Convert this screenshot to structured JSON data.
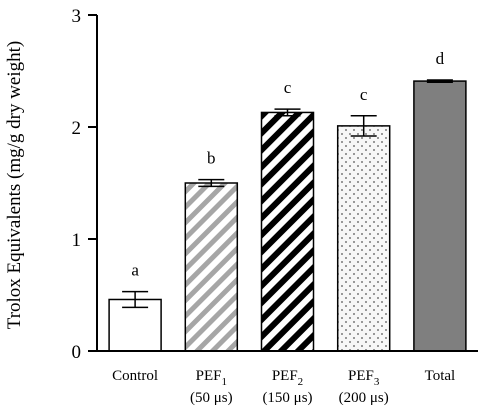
{
  "chart_data": {
    "type": "bar",
    "ylabel": "Trolox Equivalents (mg/g dry weight)",
    "xlabel": "",
    "ylim": [
      0,
      3
    ],
    "yticks": [
      0,
      1,
      2,
      3
    ],
    "categories": [
      {
        "base": "Control",
        "sub": "",
        "detail": ""
      },
      {
        "base": "PEF",
        "sub": "1",
        "detail": "(50 μs)"
      },
      {
        "base": "PEF",
        "sub": "2",
        "detail": "(150 μs)"
      },
      {
        "base": "PEF",
        "sub": "3",
        "detail": "(200 μs)"
      },
      {
        "base": "Total",
        "sub": "",
        "detail": ""
      }
    ],
    "values": [
      0.46,
      1.5,
      2.13,
      2.01,
      2.41
    ],
    "errors": [
      0.07,
      0.03,
      0.03,
      0.09,
      0.01
    ],
    "significance": [
      "a",
      "b",
      "c",
      "c",
      "d"
    ],
    "fills": [
      "white",
      "gray-hatch",
      "black-hatch",
      "dots",
      "solid-gray"
    ],
    "colors": {
      "gray_hatch": "#a6a6a6",
      "black_hatch": "#000000",
      "dots": "#555555",
      "solid": "#7f7f7f",
      "axis": "#000000"
    },
    "grid": false
  }
}
